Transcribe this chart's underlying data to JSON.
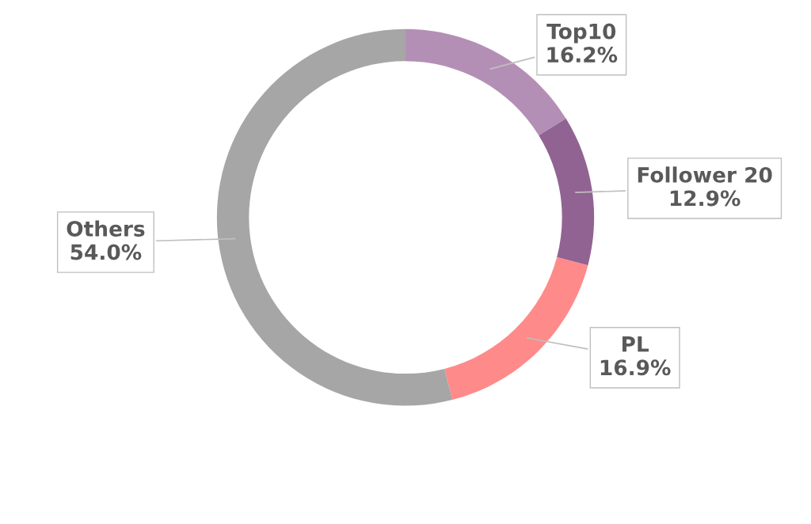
{
  "chart_data": {
    "type": "donut",
    "categories": [
      "Top10",
      "Follower 20",
      "PL",
      "Others"
    ],
    "values": [
      16.2,
      12.9,
      16.9,
      54.0
    ],
    "colors": [
      "#b48fb5",
      "#916392",
      "#ff8a8a",
      "#a6a6a6"
    ],
    "value_labels": [
      "16.2%",
      "12.9%",
      "16.9%",
      "54.0%"
    ],
    "legend": false
  }
}
